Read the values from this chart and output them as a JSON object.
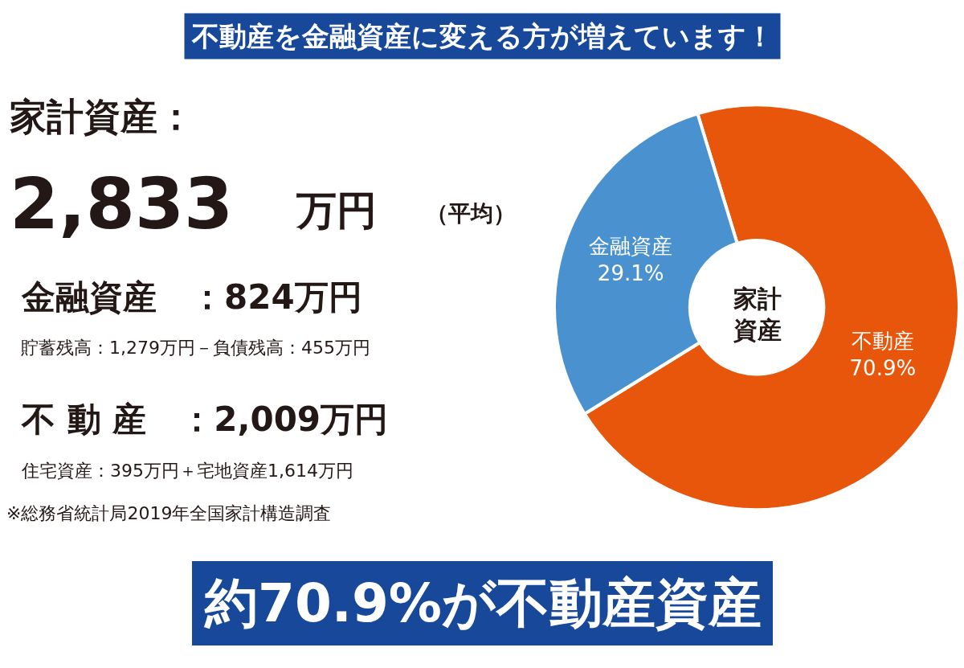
{
  "chart_data": {
    "type": "donut",
    "title": "不動産を金融資産に変える方が増えています！",
    "categories": [
      "不動産",
      "金融資産"
    ],
    "values": [
      70.9,
      29.1
    ],
    "colors": [
      "#e8560c",
      "#4a92cf"
    ],
    "value_labels": [
      "70.9%",
      "29.1%"
    ],
    "legend": false,
    "annotations": [
      "家計資産：",
      "2,833",
      "万円",
      "（平均）",
      "金融資産　：824万円",
      "貯蓄残高：1,279万円－負債残高：455万円",
      "不 動 産　：2,009万円",
      "住宅資産：395万円＋宅地資産1,614万円",
      "※総務省統計局2019年全国家計構造調査",
      "約70.9%が不動産資産",
      "家計資産"
    ]
  }
}
